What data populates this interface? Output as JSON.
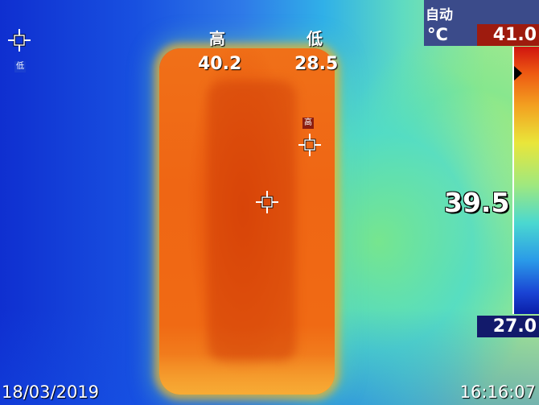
{
  "header": {
    "high_label": "高",
    "high_value": "40.2",
    "low_label": "低",
    "low_value": "28.5"
  },
  "markers": {
    "low_tag": "低",
    "high_tag": "高"
  },
  "panel": {
    "mode": "自动",
    "unit": "°C",
    "max": "41.0",
    "min": "27.0"
  },
  "center_reading": "39.5",
  "footer": {
    "date": "18/03/2019",
    "time": "16:16:07"
  },
  "colors": {
    "hot": "#f06a14",
    "background_cold": "#1a3fd0",
    "max_box": "#9e1b0e",
    "min_box": "#121a6b"
  }
}
